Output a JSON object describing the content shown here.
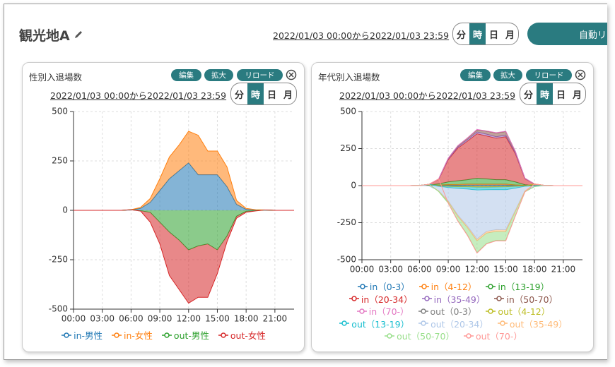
{
  "header": {
    "title": "観光地A",
    "date_range": "2022/01/03 00:00から2022/01/03 23:59",
    "units": [
      "分",
      "時",
      "日",
      "月"
    ],
    "active_unit": 1,
    "auto_button": "自動リ"
  },
  "panels": [
    {
      "title": "性別入退場数",
      "buttons": [
        "編集",
        "拡大",
        "リロード"
      ],
      "date_range": "2022/01/03 00:00から2022/01/03 23:59",
      "units": [
        "分",
        "時",
        "日",
        "月"
      ],
      "active_unit": 1
    },
    {
      "title": "年代別入退場数",
      "buttons": [
        "編集",
        "拡大",
        "リロード"
      ],
      "date_range": "2022/01/03 00:00から2022/01/03 23:59",
      "units": [
        "分",
        "時",
        "日",
        "月"
      ],
      "active_unit": 1
    }
  ],
  "chart_data": [
    {
      "type": "area",
      "stacked": true,
      "grid": true,
      "categories": [
        "00:00",
        null,
        null,
        "03:00",
        null,
        null,
        "06:00",
        null,
        null,
        "09:00",
        null,
        null,
        "12:00",
        null,
        null,
        "15:00",
        null,
        null,
        "18:00",
        null,
        null,
        "21:00",
        null,
        null
      ],
      "ylim": [
        -500,
        500
      ],
      "yticks": [
        -500,
        -250,
        0,
        250,
        500
      ],
      "series": [
        {
          "name": "in-男性",
          "color": "#1f77b4",
          "values": [
            0,
            0,
            0,
            0,
            0,
            0,
            2,
            10,
            40,
            100,
            160,
            200,
            240,
            180,
            180,
            180,
            120,
            30,
            5,
            2,
            1,
            0,
            0,
            0
          ]
        },
        {
          "name": "in-女性",
          "color": "#ff7f0e",
          "values": [
            0,
            0,
            0,
            0,
            0,
            0,
            1,
            5,
            20,
            60,
            110,
            130,
            160,
            200,
            120,
            120,
            100,
            20,
            5,
            1,
            1,
            0,
            0,
            0
          ]
        },
        {
          "name": "out-男性",
          "color": "#2ca02c",
          "values": [
            0,
            0,
            0,
            0,
            0,
            0,
            0,
            -2,
            -10,
            -60,
            -110,
            -150,
            -200,
            -180,
            -170,
            -200,
            -130,
            -30,
            -5,
            -2,
            0,
            0,
            0,
            0
          ]
        },
        {
          "name": "out-女性",
          "color": "#d62728",
          "values": [
            0,
            0,
            0,
            0,
            0,
            0,
            0,
            -2,
            -50,
            -110,
            -220,
            -250,
            -270,
            -260,
            -270,
            -120,
            -30,
            -10,
            -5,
            -1,
            0,
            0,
            0,
            0
          ]
        }
      ]
    },
    {
      "type": "area",
      "stacked": true,
      "grid": true,
      "categories": [
        "00:00",
        null,
        null,
        "03:00",
        null,
        null,
        "06:00",
        null,
        null,
        "09:00",
        null,
        null,
        "12:00",
        null,
        null,
        "15:00",
        null,
        null,
        "18:00",
        null,
        null,
        "21:00",
        null,
        null
      ],
      "ylim": [
        -500,
        500
      ],
      "yticks": [
        -500,
        -250,
        0,
        250,
        500
      ],
      "series": [
        {
          "name": "in（0-3）",
          "color": "#1f77b4",
          "values": [
            0,
            0,
            0,
            0,
            0,
            0,
            0,
            1,
            2,
            3,
            3,
            4,
            4,
            4,
            4,
            4,
            2,
            1,
            0,
            0,
            0,
            0,
            0,
            0
          ]
        },
        {
          "name": "in（4-12）",
          "color": "#ff7f0e",
          "values": [
            0,
            0,
            0,
            0,
            0,
            0,
            0,
            1,
            2,
            4,
            5,
            6,
            6,
            6,
            6,
            6,
            3,
            1,
            0,
            0,
            0,
            0,
            0,
            0
          ]
        },
        {
          "name": "in（13-19）",
          "color": "#2ca02c",
          "values": [
            0,
            0,
            0,
            0,
            0,
            0,
            0,
            2,
            8,
            18,
            25,
            30,
            40,
            35,
            30,
            30,
            20,
            4,
            1,
            0,
            0,
            0,
            0,
            0
          ]
        },
        {
          "name": "in（20-34）",
          "color": "#d62728",
          "values": [
            0,
            0,
            0,
            0,
            0,
            0,
            1,
            5,
            30,
            150,
            220,
            260,
            300,
            290,
            280,
            290,
            190,
            40,
            10,
            2,
            0,
            0,
            0,
            0
          ]
        },
        {
          "name": "in（35-49）",
          "color": "#9467bd",
          "values": [
            0,
            0,
            0,
            0,
            0,
            0,
            0,
            0,
            2,
            5,
            8,
            10,
            12,
            12,
            10,
            10,
            6,
            2,
            0,
            0,
            0,
            0,
            0,
            0
          ]
        },
        {
          "name": "in（50-70）",
          "color": "#8c564b",
          "values": [
            0,
            0,
            0,
            0,
            0,
            0,
            0,
            0,
            1,
            5,
            8,
            10,
            15,
            20,
            25,
            25,
            10,
            2,
            0,
            0,
            0,
            0,
            0,
            0
          ]
        },
        {
          "name": "in（70-）",
          "color": "#e377c2",
          "values": [
            0,
            0,
            0,
            0,
            0,
            0,
            0,
            0,
            0,
            0,
            1,
            2,
            2,
            2,
            2,
            2,
            1,
            0,
            0,
            0,
            0,
            0,
            0,
            0
          ]
        },
        {
          "name": "out（0-3）",
          "color": "#7f7f7f",
          "values": [
            0,
            0,
            0,
            0,
            0,
            0,
            0,
            0,
            -1,
            -2,
            -3,
            -3,
            -4,
            -4,
            -4,
            -3,
            -2,
            -1,
            0,
            0,
            0,
            0,
            0,
            0
          ]
        },
        {
          "name": "out（4-12）",
          "color": "#bcbd22",
          "values": [
            0,
            0,
            0,
            0,
            0,
            0,
            0,
            0,
            -1,
            -3,
            -4,
            -5,
            -6,
            -6,
            -5,
            -5,
            -3,
            -1,
            0,
            0,
            0,
            0,
            0,
            0
          ]
        },
        {
          "name": "out（13-19）",
          "color": "#17becf",
          "values": [
            0,
            0,
            0,
            0,
            0,
            0,
            0,
            0,
            -3,
            -8,
            -12,
            -15,
            -20,
            -18,
            -18,
            -20,
            -12,
            -3,
            -1,
            0,
            0,
            0,
            0,
            0
          ]
        },
        {
          "name": "out（20-34）",
          "color": "#aec7e8",
          "values": [
            0,
            0,
            0,
            0,
            0,
            0,
            0,
            -2,
            -30,
            -90,
            -180,
            -250,
            -330,
            -280,
            -270,
            -270,
            -150,
            -30,
            -5,
            -1,
            0,
            0,
            0,
            0
          ]
        },
        {
          "name": "out（35-49）",
          "color": "#ffbb78",
          "values": [
            0,
            0,
            0,
            0,
            0,
            0,
            0,
            0,
            -2,
            -5,
            -8,
            -10,
            -12,
            -12,
            -12,
            -12,
            -6,
            -2,
            0,
            0,
            0,
            0,
            0,
            0
          ]
        },
        {
          "name": "out（50-70）",
          "color": "#98df8a",
          "values": [
            0,
            0,
            0,
            0,
            0,
            0,
            0,
            0,
            -3,
            -10,
            -30,
            -50,
            -80,
            -70,
            -60,
            -60,
            -30,
            -5,
            -1,
            0,
            0,
            0,
            0,
            0
          ]
        },
        {
          "name": "out（70-）",
          "color": "#ff9896",
          "values": [
            0,
            0,
            0,
            0,
            0,
            0,
            0,
            0,
            0,
            -1,
            -2,
            -3,
            -3,
            -3,
            -3,
            -3,
            -2,
            -1,
            0,
            0,
            0,
            0,
            0,
            0
          ]
        }
      ]
    }
  ]
}
